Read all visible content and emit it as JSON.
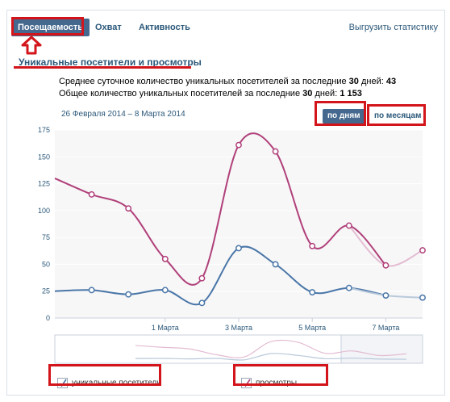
{
  "tabs": [
    {
      "label": "Посещаемость",
      "active": true
    },
    {
      "label": "Охват",
      "active": false
    },
    {
      "label": "Активность",
      "active": false
    }
  ],
  "export_label": "Выгрузить статистику",
  "section_title": "Уникальные посетители и просмотры",
  "summary": {
    "line1_text": "Среднее суточное количество уникальных посетителей за последние",
    "line1_days": "30",
    "line1_suffix": "дней:",
    "line1_value": "43",
    "line2_text": "Общее количество уникальных посетителей за последние",
    "line2_days": "30",
    "line2_suffix": "дней:",
    "line2_value": "1 153"
  },
  "date_range": "26 Февраля 2014 – 8 Марта 2014",
  "mode_buttons": {
    "by_days": "по дням",
    "by_months": "по месяцам"
  },
  "legend": {
    "visitors": "уникальные посетители",
    "views": "просмотры"
  },
  "colors": {
    "visitors": "#4a76a8",
    "views": "#b0407a",
    "accent": "#45688e",
    "annotation": "#d3151b"
  },
  "chart_data": {
    "type": "line",
    "x": [
      "26 Февраля",
      "27 Февраля",
      "28 Февраля",
      "1 Марта",
      "2 Марта",
      "3 Марта",
      "4 Марта",
      "5 Марта",
      "6 Марта",
      "7 Марта",
      "8 Марта"
    ],
    "x_tick_labels": [
      "1 Марта",
      "3 Марта",
      "5 Марта",
      "7 Марта"
    ],
    "y_ticks": [
      0,
      25,
      50,
      75,
      100,
      125,
      150,
      175
    ],
    "ylim": [
      0,
      175
    ],
    "series": [
      {
        "name": "уникальные посетители",
        "values": [
          25,
          26,
          22,
          26,
          14,
          65,
          50,
          24,
          28,
          21,
          19
        ]
      },
      {
        "name": "просмотры",
        "values": [
          130,
          115,
          102,
          55,
          37,
          161,
          155,
          67,
          86,
          49,
          63
        ]
      }
    ],
    "grid": true,
    "legend_position": "bottom"
  }
}
